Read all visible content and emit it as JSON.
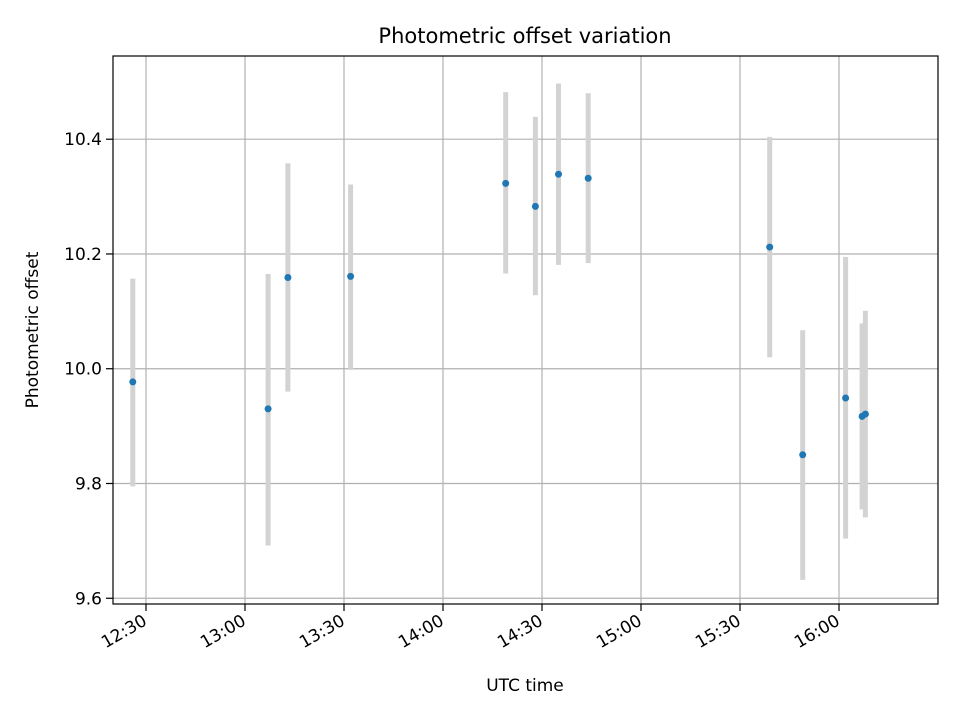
{
  "chart_data": {
    "type": "scatter",
    "title": "Photometric offset variation",
    "xlabel": "UTC time",
    "ylabel": "Photometric offset",
    "x_axis": {
      "kind": "time",
      "range": [
        "12:20",
        "16:30"
      ],
      "ticks": [
        "12:30",
        "13:00",
        "13:30",
        "14:00",
        "14:30",
        "15:00",
        "15:30",
        "16:00"
      ]
    },
    "y_axis": {
      "range": [
        9.59,
        10.545
      ],
      "ticks": [
        9.6,
        9.8,
        10.0,
        10.2,
        10.4
      ],
      "tick_labels": [
        "9.6",
        "9.8",
        "10.0",
        "10.2",
        "10.4"
      ]
    },
    "grid": true,
    "colors": {
      "points": "#1f77b4",
      "error_bars": "#d3d3d3",
      "grid": "#b0b0b0"
    },
    "points": [
      {
        "x": "12:26",
        "y": 9.977,
        "lo": 9.795,
        "hi": 10.157
      },
      {
        "x": "13:07",
        "y": 9.93,
        "lo": 9.692,
        "hi": 10.165
      },
      {
        "x": "13:13",
        "y": 10.159,
        "lo": 9.96,
        "hi": 10.358
      },
      {
        "x": "13:32",
        "y": 10.161,
        "lo": 9.998,
        "hi": 10.321
      },
      {
        "x": "14:19",
        "y": 10.323,
        "lo": 10.166,
        "hi": 10.482
      },
      {
        "x": "14:28",
        "y": 10.283,
        "lo": 10.128,
        "hi": 10.439
      },
      {
        "x": "14:35",
        "y": 10.339,
        "lo": 10.181,
        "hi": 10.497
      },
      {
        "x": "14:44",
        "y": 10.332,
        "lo": 10.184,
        "hi": 10.48
      },
      {
        "x": "15:39",
        "y": 10.212,
        "lo": 10.02,
        "hi": 10.404
      },
      {
        "x": "15:49",
        "y": 9.85,
        "lo": 9.632,
        "hi": 10.067
      },
      {
        "x": "16:02",
        "y": 9.949,
        "lo": 9.704,
        "hi": 10.195
      },
      {
        "x": "16:07",
        "y": 9.917,
        "lo": 9.755,
        "hi": 10.079
      },
      {
        "x": "16:08",
        "y": 9.921,
        "lo": 9.741,
        "hi": 10.101
      }
    ]
  }
}
